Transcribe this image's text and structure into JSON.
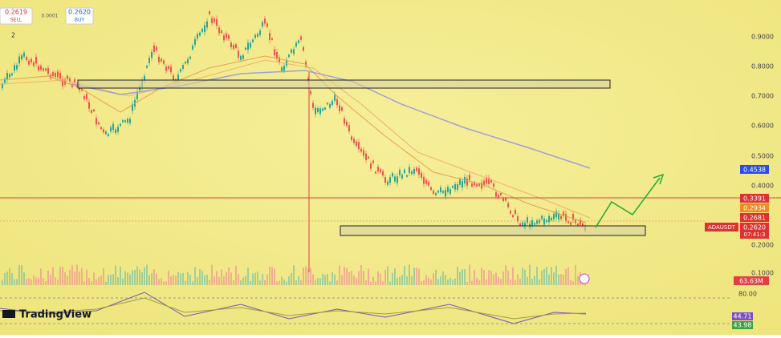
{
  "order_panel": {
    "sell_price": "0.2619",
    "sell_label": "SELL",
    "spread": "0.0001",
    "buy_price": "0.2620",
    "buy_label": "BUY",
    "quantity": "2"
  },
  "price_axis": [
    "0.9000",
    "0.8000",
    "0.7000",
    "0.6000",
    "0.5000",
    "0.4000",
    "0.2000",
    "0.1000"
  ],
  "price_tags": {
    "ma_slow": "0.4538",
    "red_line": "0.3391",
    "ma_mid": "0.2934",
    "ma_fast": "0.2681",
    "symbol": "ADAUSDT",
    "last_price": "0.2620",
    "countdown": "07:41:3",
    "volume": "63.63M"
  },
  "rsi_pane": {
    "upper_level": "80.00",
    "rsi": "44.71",
    "rsi_ma": "43.98"
  },
  "brand": "TradingView"
}
